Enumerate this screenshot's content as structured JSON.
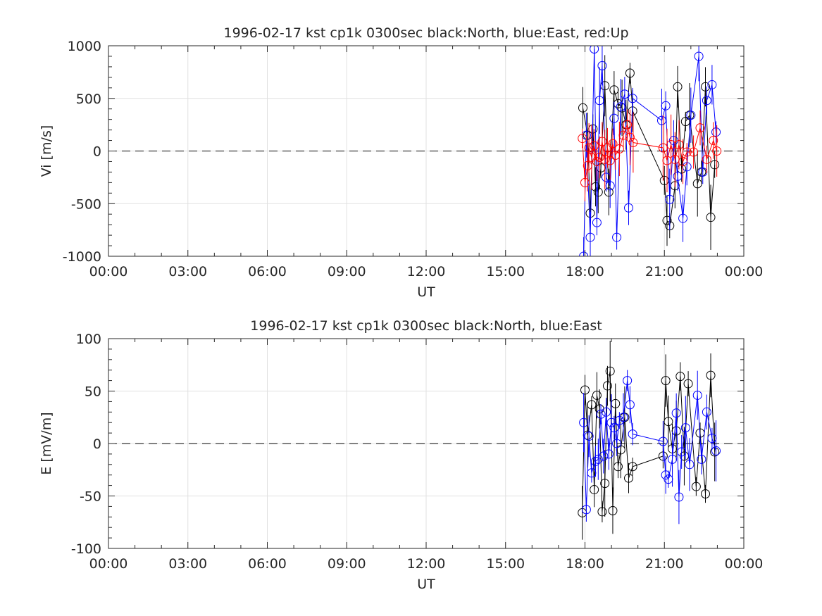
{
  "chart_data": [
    {
      "type": "line",
      "title": "1996-02-17 kst cp1k 0300sec black:North, blue:East, red:Up",
      "xlabel": "UT",
      "ylabel": "Vi [m/s]",
      "xlim_hours": [
        0,
        24
      ],
      "ylim": [
        -1000,
        1000
      ],
      "x_ticks": [
        "00:00",
        "03:00",
        "06:00",
        "09:00",
        "12:00",
        "15:00",
        "18:00",
        "21:00",
        "00:00"
      ],
      "y_ticks": [
        "-1000",
        "-500",
        "0",
        "500",
        "1000"
      ],
      "y_tick_values": [
        -1000,
        -500,
        0,
        500,
        1000
      ],
      "grid": true,
      "reference_line": 0,
      "series": [
        {
          "name": "North",
          "color": "#000000",
          "x_hours": [
            17.92,
            18.1,
            18.2,
            18.3,
            18.4,
            18.5,
            18.6,
            18.75,
            18.9,
            19.1,
            19.25,
            19.4,
            19.55,
            19.7,
            19.8,
            21.0,
            21.1,
            21.2,
            21.4,
            21.5,
            21.65,
            21.8,
            21.95,
            22.25,
            22.4,
            22.55,
            22.75,
            22.9
          ],
          "y": [
            410,
            150,
            -590,
            210,
            -340,
            -390,
            -160,
            620,
            -390,
            580,
            450,
            410,
            250,
            740,
            380,
            -280,
            -660,
            -710,
            -330,
            610,
            -170,
            280,
            340,
            -310,
            -200,
            610,
            -630,
            -130
          ]
        },
        {
          "name": "East",
          "color": "#0000ff",
          "x_hours": [
            17.95,
            18.05,
            18.2,
            18.35,
            18.45,
            18.55,
            18.65,
            18.8,
            18.95,
            19.1,
            19.2,
            19.35,
            19.5,
            19.65,
            19.8,
            20.9,
            21.05,
            21.2,
            21.35,
            21.5,
            21.7,
            21.85,
            22.0,
            22.3,
            22.45,
            22.6,
            22.8,
            22.95
          ],
          "y": [
            -1000,
            150,
            -820,
            970,
            -680,
            480,
            810,
            -250,
            -330,
            310,
            -820,
            420,
            540,
            -540,
            500,
            290,
            430,
            -460,
            100,
            -240,
            -640,
            -150,
            340,
            900,
            -200,
            480,
            630,
            180
          ]
        },
        {
          "name": "Up",
          "color": "#ff0000",
          "x_hours": [
            17.9,
            18.0,
            18.1,
            18.15,
            18.25,
            18.35,
            18.45,
            18.55,
            18.65,
            18.75,
            18.85,
            18.95,
            19.05,
            19.15,
            19.3,
            19.45,
            19.6,
            19.7,
            19.82,
            20.95,
            21.1,
            21.25,
            21.4,
            21.55,
            21.7,
            21.85,
            22.1,
            22.35,
            22.6,
            22.85,
            22.98
          ],
          "y": [
            120,
            -300,
            -140,
            30,
            -60,
            50,
            -100,
            -60,
            90,
            -80,
            30,
            -90,
            70,
            -40,
            20,
            150,
            250,
            130,
            80,
            30,
            -90,
            60,
            -80,
            60,
            -100,
            -10,
            -10,
            220,
            -80,
            100,
            0
          ]
        }
      ]
    },
    {
      "type": "line",
      "title": "1996-02-17 kst cp1k 0300sec black:North, blue:East",
      "xlabel": "UT",
      "ylabel": "E [mV/m]",
      "xlim_hours": [
        0,
        24
      ],
      "ylim": [
        -100,
        100
      ],
      "x_ticks": [
        "00:00",
        "03:00",
        "06:00",
        "09:00",
        "12:00",
        "15:00",
        "18:00",
        "21:00",
        "00:00"
      ],
      "y_ticks": [
        "-100",
        "-50",
        "0",
        "50",
        "100"
      ],
      "y_tick_values": [
        -100,
        -50,
        0,
        50,
        100
      ],
      "grid": true,
      "reference_line": 0,
      "series": [
        {
          "name": "North",
          "color": "#000000",
          "x_hours": [
            17.9,
            18.0,
            18.1,
            18.25,
            18.35,
            18.45,
            18.55,
            18.65,
            18.75,
            18.85,
            18.95,
            19.05,
            19.15,
            19.25,
            19.35,
            19.5,
            19.65,
            19.8,
            20.95,
            21.05,
            21.15,
            21.3,
            21.45,
            21.6,
            21.75,
            21.9,
            22.2,
            22.35,
            22.55,
            22.75,
            22.9
          ],
          "y": [
            -66,
            51,
            8,
            37,
            -44,
            46,
            33,
            -65,
            -38,
            55,
            69,
            -64,
            38,
            -22,
            -6,
            25,
            -33,
            -22,
            -12,
            60,
            21,
            -5,
            12,
            64,
            -12,
            57,
            -41,
            10,
            -48,
            65,
            -8
          ]
        },
        {
          "name": "East",
          "color": "#0000ff",
          "x_hours": [
            17.95,
            18.05,
            18.15,
            18.25,
            18.4,
            18.5,
            18.6,
            18.7,
            18.8,
            18.9,
            19.0,
            19.1,
            19.2,
            19.3,
            19.45,
            19.6,
            19.7,
            19.8,
            20.95,
            21.05,
            21.15,
            21.3,
            21.45,
            21.55,
            21.65,
            21.8,
            21.95,
            22.25,
            22.4,
            22.6,
            22.8,
            22.95
          ],
          "y": [
            20,
            -63,
            7,
            -28,
            -17,
            -15,
            28,
            -12,
            30,
            -10,
            20,
            15,
            0,
            22,
            25,
            60,
            37,
            9,
            2,
            -30,
            -34,
            -15,
            29,
            -51,
            -8,
            15,
            -20,
            46,
            -15,
            30,
            5,
            -7
          ]
        }
      ]
    }
  ]
}
